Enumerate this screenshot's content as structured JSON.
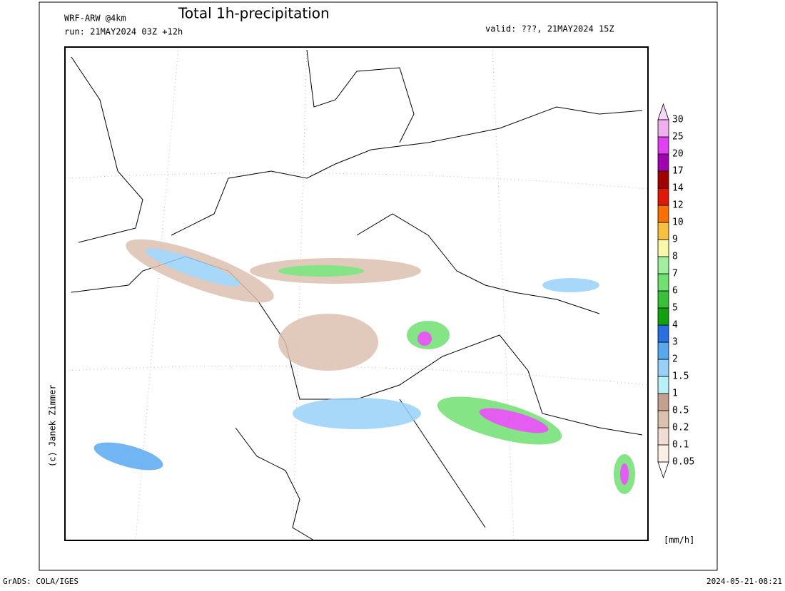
{
  "header": {
    "model": "WRF-ARW @4km",
    "title": "Total 1h-precipitation",
    "run": "run: 21MAY2024 03Z +12h",
    "valid": "valid: ???, 21MAY2024 15Z"
  },
  "legend": {
    "levels": [
      0.05,
      0.1,
      0.2,
      0.5,
      1,
      1.5,
      2,
      3,
      4,
      5,
      6,
      7,
      8,
      9,
      10,
      12,
      14,
      17,
      20,
      25,
      30
    ],
    "colors": [
      "#ffffff",
      "#fbeee4",
      "#f0dcd0",
      "#dcc0b0",
      "#c4a090",
      "#b8f0f8",
      "#98d0f8",
      "#58a8f0",
      "#2870e0",
      "#10a010",
      "#38c038",
      "#70e070",
      "#a0f0a0",
      "#f8f8a8",
      "#f8c040",
      "#f87000",
      "#e01808",
      "#a00000",
      "#a000b0",
      "#e040f0",
      "#f0b0f0",
      "#f8d8f8"
    ],
    "unit": "[mm/h]"
  },
  "credit": "(c) Janek Zimmer",
  "footer": {
    "left": "GrADS: COLA/IGES",
    "right": "2024-05-21-08:21"
  }
}
